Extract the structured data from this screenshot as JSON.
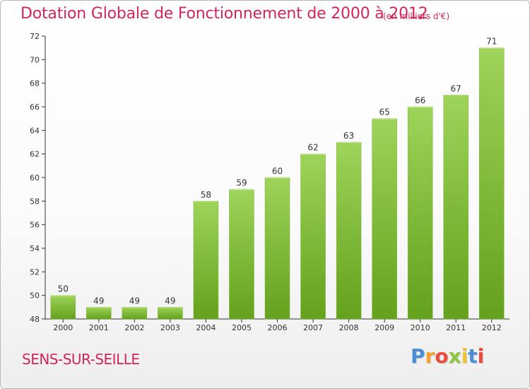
{
  "header": {
    "title": "Dotation Globale de Fonctionnement de 2000 à 2012",
    "unit_note": "(en milliers d'€)"
  },
  "footer": {
    "commune": "SENS-SUR-SEILLE",
    "logo": {
      "text": "Proxiti",
      "letters": [
        {
          "char": "P",
          "color": "#4a8fd6"
        },
        {
          "char": "r",
          "color": "#f2a02b"
        },
        {
          "char": "o",
          "color": "#e94b3c"
        },
        {
          "char": "x",
          "color": "#8cc63f"
        },
        {
          "char": "i",
          "color": "#f2c12e"
        },
        {
          "char": "t",
          "color": "#4a8fd6"
        },
        {
          "char": "i",
          "color": "#e94b3c"
        }
      ]
    }
  },
  "colors": {
    "accent_text": "#d0265a",
    "bar_top": "#9ed45a",
    "bar_bottom": "#64a11c",
    "axis": "#333333",
    "grid": "#d9d9d9"
  },
  "chart_data": {
    "type": "bar",
    "title": "Dotation Globale de Fonctionnement de 2000 à 2012",
    "subtitle": "(en milliers d'€)",
    "xlabel": "",
    "ylabel": "",
    "categories": [
      "2000",
      "2001",
      "2002",
      "2003",
      "2004",
      "2005",
      "2006",
      "2007",
      "2008",
      "2009",
      "2010",
      "2011",
      "2012"
    ],
    "values": [
      50,
      49,
      49,
      49,
      58,
      59,
      60,
      62,
      63,
      65,
      66,
      67,
      71
    ],
    "value_labels": [
      "50",
      "49",
      "49",
      "49",
      "58",
      "59",
      "60",
      "62",
      "63",
      "65",
      "66",
      "67",
      "71"
    ],
    "ylim": [
      48,
      72
    ],
    "yticks": [
      48,
      50,
      52,
      54,
      56,
      58,
      60,
      62,
      64,
      66,
      68,
      70,
      72
    ],
    "grid": false,
    "legend": "none"
  }
}
